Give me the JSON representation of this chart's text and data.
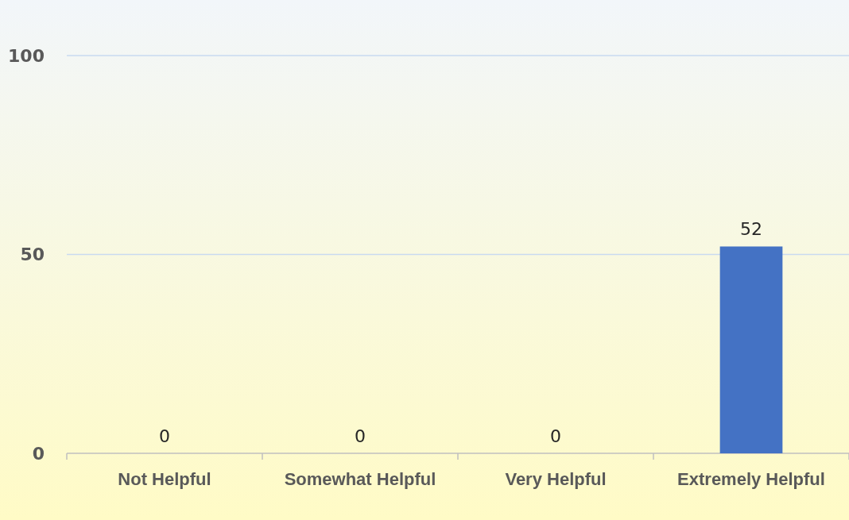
{
  "chart_data": {
    "type": "bar",
    "categories": [
      "Not Helpful",
      "Somewhat Helpful",
      "Very Helpful",
      "Extremely Helpful"
    ],
    "values": [
      0,
      0,
      0,
      52
    ],
    "color": "#4472c4",
    "ylim": [
      0,
      100
    ],
    "yticks": [
      0,
      50,
      100
    ],
    "grid": "y",
    "data_labels": true
  }
}
